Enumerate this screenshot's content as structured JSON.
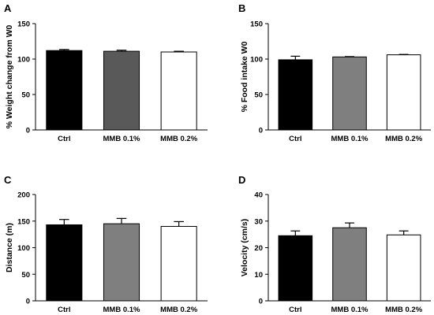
{
  "chart_data": [
    {
      "panel": "A",
      "type": "bar",
      "ylabel": "% Weight change from W0",
      "categories": [
        "Ctrl",
        "MMB 0.1%",
        "MMB 0.2%"
      ],
      "values": [
        112,
        111,
        110
      ],
      "errors": [
        1.5,
        1.5,
        1.0
      ],
      "colors": [
        "#000000",
        "#595959",
        "#ffffff"
      ],
      "ylim": [
        0,
        150
      ],
      "yticks": [
        0,
        50,
        100,
        150
      ]
    },
    {
      "panel": "B",
      "type": "bar",
      "ylabel": "%  Food intake W0",
      "categories": [
        "Ctrl",
        "MMB 0.1%",
        "MMB 0.2%"
      ],
      "values": [
        99,
        103,
        106
      ],
      "errors": [
        5,
        0.5,
        0.5
      ],
      "colors": [
        "#000000",
        "#7f7f7f",
        "#ffffff"
      ],
      "ylim": [
        0,
        150
      ],
      "yticks": [
        0,
        50,
        100,
        150
      ]
    },
    {
      "panel": "C",
      "type": "bar",
      "ylabel": "Distance (m)",
      "categories": [
        "Ctrl",
        "MMB 0.1%",
        "MMB 0.2%"
      ],
      "values": [
        143,
        145,
        140
      ],
      "errors": [
        10,
        10,
        9
      ],
      "colors": [
        "#000000",
        "#7f7f7f",
        "#ffffff"
      ],
      "ylim": [
        0,
        200
      ],
      "yticks": [
        0,
        50,
        100,
        150,
        200
      ]
    },
    {
      "panel": "D",
      "type": "bar",
      "ylabel": "Velocity (cm/s)",
      "categories": [
        "Ctrl",
        "MMB 0.1%",
        "MMB 0.2%"
      ],
      "values": [
        24.5,
        27.5,
        24.8
      ],
      "errors": [
        1.8,
        1.8,
        1.5
      ],
      "colors": [
        "#000000",
        "#7f7f7f",
        "#ffffff"
      ],
      "ylim": [
        0,
        40
      ],
      "yticks": [
        0,
        10,
        20,
        30,
        40
      ]
    }
  ]
}
